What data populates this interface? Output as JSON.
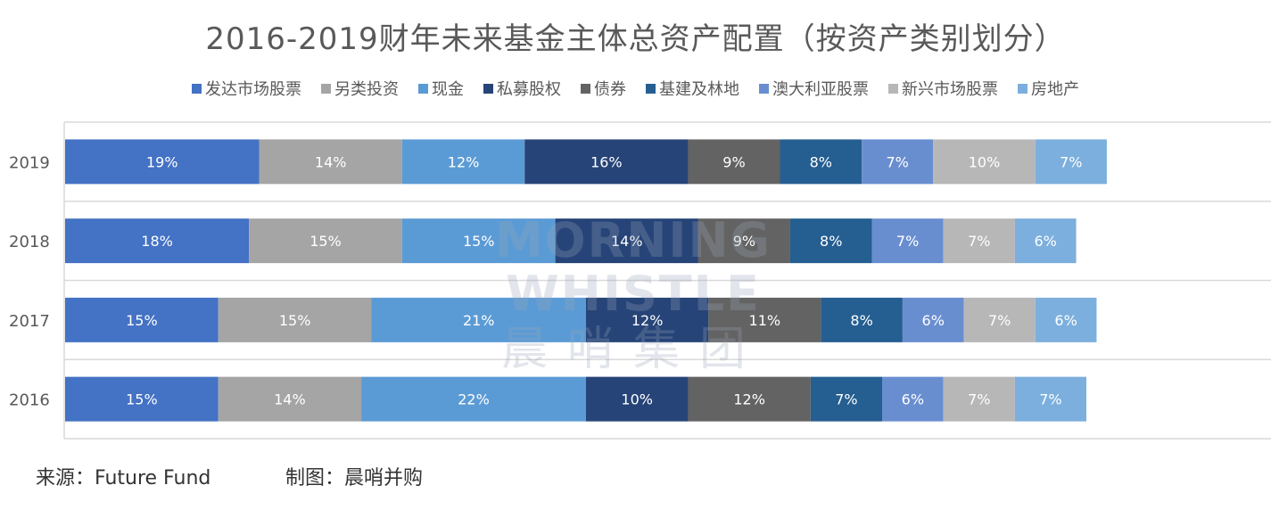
{
  "chart_data": {
    "type": "bar",
    "orientation": "horizontal",
    "stacked": true,
    "title": "2016-2019财年未来基金主体总资产配置（按资产类别划分）",
    "categories": [
      "2019",
      "2018",
      "2017",
      "2016"
    ],
    "series": [
      {
        "name": "发达市场股票",
        "color": "#4472c4",
        "values": [
          19,
          18,
          15,
          15
        ]
      },
      {
        "name": "另类投资",
        "color": "#a5a5a5",
        "values": [
          14,
          15,
          15,
          14
        ]
      },
      {
        "name": "现金",
        "color": "#5b9bd5",
        "values": [
          12,
          15,
          21,
          22
        ]
      },
      {
        "name": "私募股权",
        "color": "#264478",
        "values": [
          16,
          14,
          12,
          10
        ]
      },
      {
        "name": "债券",
        "color": "#636363",
        "values": [
          9,
          9,
          11,
          12
        ]
      },
      {
        "name": "基建及林地",
        "color": "#255e91",
        "values": [
          8,
          8,
          8,
          7
        ]
      },
      {
        "name": "澳大利亚股票",
        "color": "#698ed0",
        "values": [
          7,
          7,
          6,
          6
        ]
      },
      {
        "name": "新兴市场股票",
        "color": "#b7b7b7",
        "values": [
          10,
          7,
          7,
          7
        ]
      },
      {
        "name": "房地产",
        "color": "#7cafdd",
        "values": [
          7,
          6,
          6,
          7
        ]
      }
    ],
    "value_suffix": "%",
    "legend_position": "top",
    "grid": true
  },
  "watermark": {
    "en": "MORNING WHISTLE",
    "cn": "晨哨集团"
  },
  "footer": {
    "source": "来源：Future Fund",
    "credit": "制图：晨哨并购"
  }
}
